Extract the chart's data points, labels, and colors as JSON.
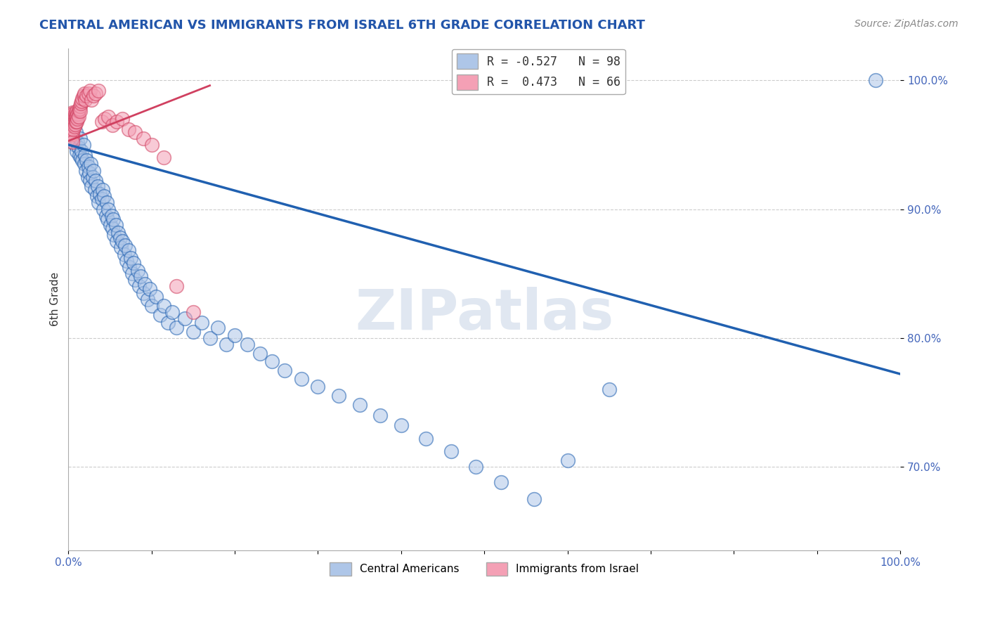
{
  "title": "CENTRAL AMERICAN VS IMMIGRANTS FROM ISRAEL 6TH GRADE CORRELATION CHART",
  "source": "Source: ZipAtlas.com",
  "ylabel": "6th Grade",
  "xlim": [
    0.0,
    1.0
  ],
  "ylim": [
    0.635,
    1.025
  ],
  "yticks": [
    0.7,
    0.8,
    0.9,
    1.0
  ],
  "ytick_labels": [
    "70.0%",
    "80.0%",
    "90.0%",
    "100.0%"
  ],
  "legend_blue_label": "R = -0.527   N = 98",
  "legend_pink_label": "R =  0.473   N = 66",
  "legend_label_blue": "Central Americans",
  "legend_label_pink": "Immigrants from Israel",
  "blue_color": "#aec6e8",
  "pink_color": "#f4a0b5",
  "blue_line_color": "#2060b0",
  "pink_line_color": "#d04060",
  "watermark": "ZIPatlas",
  "blue_line": {
    "x0": 0.0,
    "x1": 1.0,
    "y0": 0.95,
    "y1": 0.772
  },
  "pink_line": {
    "x0": 0.0,
    "x1": 0.17,
    "y0": 0.953,
    "y1": 0.996
  },
  "blue_scatter_x": [
    0.005,
    0.007,
    0.008,
    0.009,
    0.01,
    0.011,
    0.012,
    0.013,
    0.014,
    0.015,
    0.016,
    0.017,
    0.018,
    0.019,
    0.02,
    0.021,
    0.022,
    0.023,
    0.024,
    0.025,
    0.026,
    0.027,
    0.028,
    0.029,
    0.03,
    0.032,
    0.033,
    0.034,
    0.035,
    0.036,
    0.038,
    0.04,
    0.041,
    0.042,
    0.043,
    0.045,
    0.046,
    0.047,
    0.048,
    0.05,
    0.052,
    0.053,
    0.054,
    0.055,
    0.057,
    0.058,
    0.06,
    0.062,
    0.063,
    0.065,
    0.067,
    0.068,
    0.07,
    0.072,
    0.073,
    0.075,
    0.077,
    0.078,
    0.08,
    0.083,
    0.085,
    0.087,
    0.09,
    0.092,
    0.095,
    0.098,
    0.1,
    0.105,
    0.11,
    0.115,
    0.12,
    0.125,
    0.13,
    0.14,
    0.15,
    0.16,
    0.17,
    0.18,
    0.19,
    0.2,
    0.215,
    0.23,
    0.245,
    0.26,
    0.28,
    0.3,
    0.325,
    0.35,
    0.375,
    0.4,
    0.43,
    0.46,
    0.49,
    0.52,
    0.56,
    0.6,
    0.65,
    0.97
  ],
  "blue_scatter_y": [
    0.958,
    0.955,
    0.95,
    0.96,
    0.945,
    0.952,
    0.948,
    0.942,
    0.955,
    0.94,
    0.945,
    0.938,
    0.95,
    0.935,
    0.942,
    0.93,
    0.938,
    0.925,
    0.933,
    0.928,
    0.922,
    0.935,
    0.918,
    0.925,
    0.93,
    0.915,
    0.922,
    0.91,
    0.918,
    0.905,
    0.912,
    0.908,
    0.915,
    0.9,
    0.91,
    0.895,
    0.905,
    0.892,
    0.9,
    0.888,
    0.895,
    0.885,
    0.892,
    0.88,
    0.888,
    0.875,
    0.882,
    0.878,
    0.87,
    0.875,
    0.865,
    0.872,
    0.86,
    0.868,
    0.855,
    0.862,
    0.85,
    0.858,
    0.845,
    0.852,
    0.84,
    0.848,
    0.835,
    0.842,
    0.83,
    0.838,
    0.825,
    0.832,
    0.818,
    0.825,
    0.812,
    0.82,
    0.808,
    0.815,
    0.805,
    0.812,
    0.8,
    0.808,
    0.795,
    0.802,
    0.795,
    0.788,
    0.782,
    0.775,
    0.768,
    0.762,
    0.755,
    0.748,
    0.74,
    0.732,
    0.722,
    0.712,
    0.7,
    0.688,
    0.675,
    0.705,
    0.76,
    1.0
  ],
  "pink_scatter_x": [
    0.003,
    0.003,
    0.003,
    0.003,
    0.004,
    0.004,
    0.004,
    0.004,
    0.004,
    0.005,
    0.005,
    0.005,
    0.005,
    0.005,
    0.005,
    0.005,
    0.005,
    0.005,
    0.006,
    0.006,
    0.006,
    0.006,
    0.007,
    0.007,
    0.007,
    0.008,
    0.008,
    0.008,
    0.009,
    0.009,
    0.01,
    0.01,
    0.01,
    0.011,
    0.011,
    0.012,
    0.012,
    0.013,
    0.014,
    0.014,
    0.015,
    0.016,
    0.017,
    0.018,
    0.019,
    0.02,
    0.022,
    0.024,
    0.026,
    0.028,
    0.03,
    0.033,
    0.036,
    0.04,
    0.044,
    0.048,
    0.053,
    0.058,
    0.065,
    0.072,
    0.08,
    0.09,
    0.1,
    0.115,
    0.13,
    0.15
  ],
  "pink_scatter_y": [
    0.968,
    0.964,
    0.972,
    0.96,
    0.97,
    0.966,
    0.962,
    0.958,
    0.974,
    0.97,
    0.966,
    0.962,
    0.958,
    0.955,
    0.952,
    0.975,
    0.972,
    0.968,
    0.974,
    0.97,
    0.966,
    0.962,
    0.972,
    0.968,
    0.964,
    0.974,
    0.97,
    0.966,
    0.972,
    0.968,
    0.976,
    0.972,
    0.968,
    0.974,
    0.97,
    0.976,
    0.972,
    0.978,
    0.98,
    0.976,
    0.982,
    0.984,
    0.986,
    0.988,
    0.99,
    0.985,
    0.988,
    0.99,
    0.992,
    0.985,
    0.988,
    0.99,
    0.992,
    0.968,
    0.97,
    0.972,
    0.965,
    0.968,
    0.97,
    0.962,
    0.96,
    0.955,
    0.95,
    0.94,
    0.84,
    0.82
  ]
}
